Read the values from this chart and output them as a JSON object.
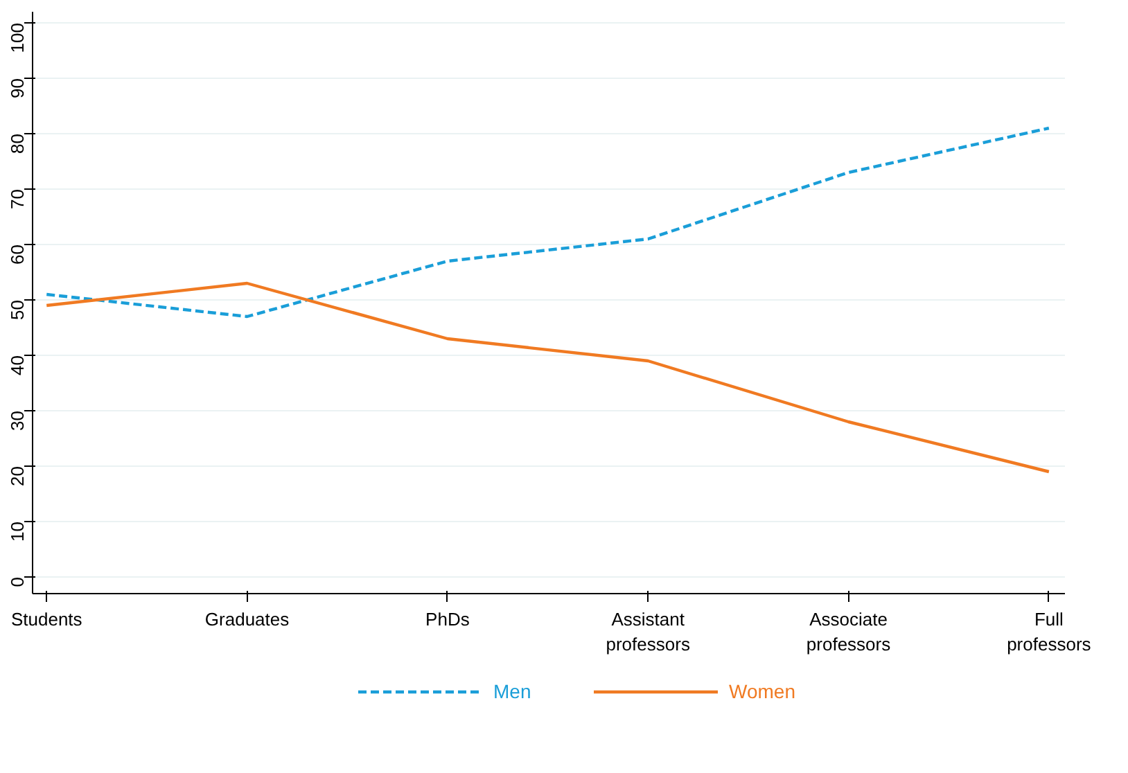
{
  "chart_data": {
    "type": "line",
    "categories": [
      "Students",
      "Graduates",
      "PhDs",
      "Assistant professors",
      "Associate professors",
      "Full professors"
    ],
    "series": [
      {
        "name": "Men",
        "color": "#1a9ed8",
        "line_style": "dashed",
        "values": [
          51,
          47,
          57,
          61,
          73,
          81
        ]
      },
      {
        "name": "Women",
        "color": "#f07a22",
        "line_style": "solid",
        "values": [
          49,
          53,
          43,
          39,
          28,
          19
        ]
      }
    ],
    "ylim": [
      -3,
      102
    ],
    "yticks": [
      0,
      10,
      20,
      30,
      40,
      50,
      60,
      70,
      80,
      90,
      100
    ],
    "grid": "y",
    "legend": "bottom",
    "marker": "none"
  }
}
